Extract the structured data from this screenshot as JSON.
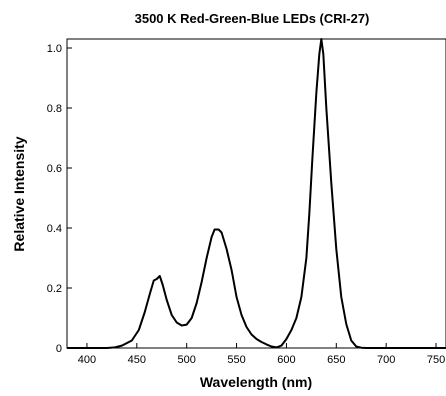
{
  "chart_data": {
    "type": "line",
    "title": "3500 K Red-Green-Blue LEDs (CRI-27)",
    "xlabel": "Wavelength (nm)",
    "ylabel": "Relative Intensity",
    "xlim": [
      380,
      760
    ],
    "ylim": [
      0,
      1.03
    ],
    "xticks": [
      400,
      450,
      500,
      550,
      600,
      650,
      700,
      750
    ],
    "yticks": [
      0,
      0.2,
      0.4,
      0.6,
      0.8,
      1.0
    ],
    "ytick_labels": [
      "0",
      "0.2",
      "0.4",
      "0.6",
      "0.8",
      "1.0"
    ],
    "grid": false,
    "series": [
      {
        "x": [
          380,
          400,
          420,
          428,
          435,
          445,
          452,
          458,
          463,
          467,
          470,
          473,
          476,
          480,
          485,
          490,
          495,
          500,
          505,
          510,
          515,
          520,
          525,
          528,
          532,
          535,
          540,
          545,
          550,
          555,
          560,
          565,
          570,
          575,
          580,
          585,
          590,
          595,
          600,
          605,
          610,
          615,
          620,
          623,
          626,
          630,
          633,
          635,
          637,
          640,
          645,
          650,
          655,
          660,
          665,
          670,
          675,
          680,
          700,
          760
        ],
        "y": [
          0,
          0,
          0,
          0.002,
          0.008,
          0.025,
          0.06,
          0.12,
          0.18,
          0.225,
          0.23,
          0.24,
          0.21,
          0.16,
          0.11,
          0.085,
          0.075,
          0.078,
          0.1,
          0.15,
          0.22,
          0.3,
          0.37,
          0.395,
          0.395,
          0.385,
          0.33,
          0.26,
          0.17,
          0.11,
          0.07,
          0.045,
          0.03,
          0.02,
          0.012,
          0.005,
          0.002,
          0.008,
          0.03,
          0.06,
          0.1,
          0.17,
          0.3,
          0.45,
          0.63,
          0.85,
          0.98,
          1.03,
          0.98,
          0.8,
          0.55,
          0.33,
          0.17,
          0.08,
          0.025,
          0.005,
          0.001,
          0,
          0,
          0
        ]
      }
    ]
  }
}
